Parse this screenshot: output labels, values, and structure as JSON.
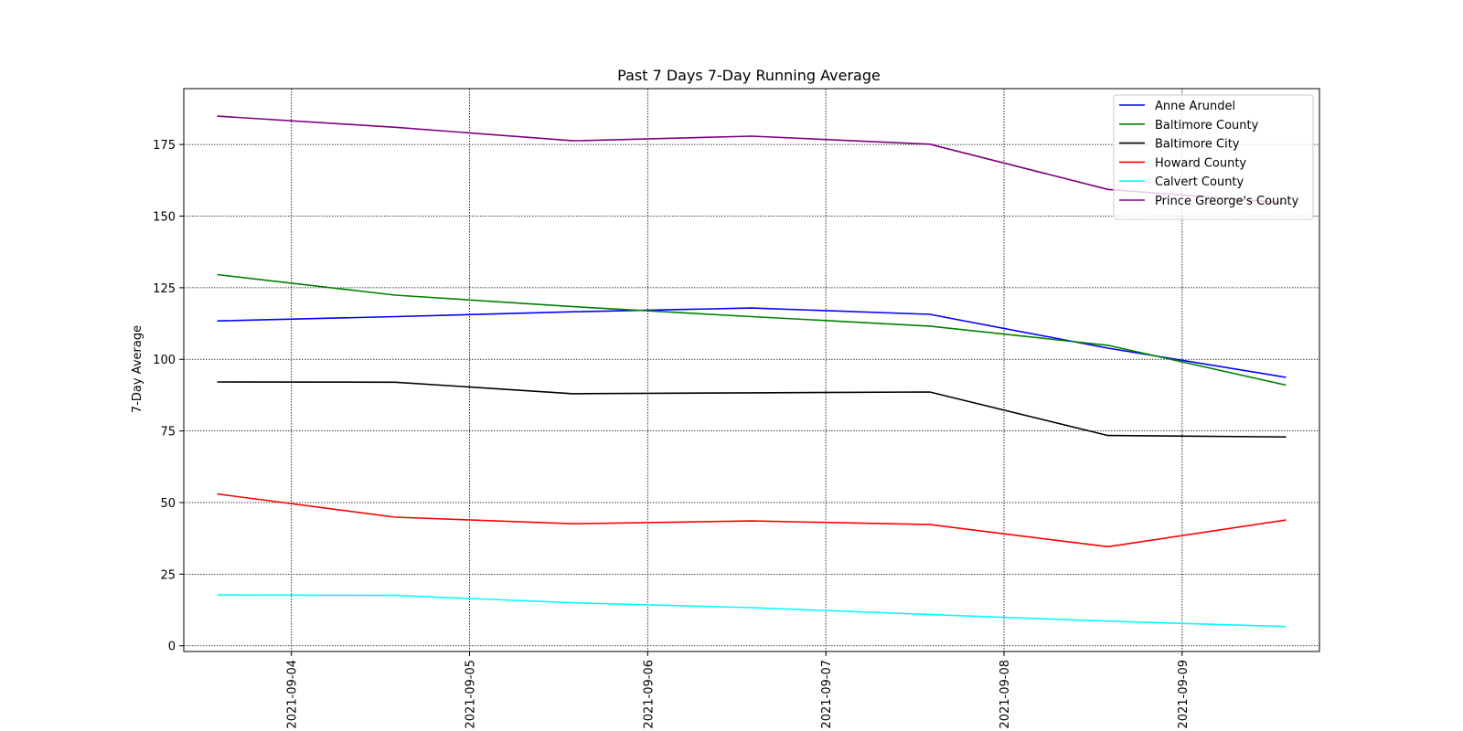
{
  "chart_data": {
    "type": "line",
    "title": "Past 7 Days 7-Day Running Average",
    "xlabel": "",
    "ylabel": "7-Day Average",
    "x": [
      "2021-09-03 14:00",
      "2021-09-04 14:00",
      "2021-09-05 14:00",
      "2021-09-06 14:00",
      "2021-09-07 14:00",
      "2021-09-08 14:00",
      "2021-09-09 14:00"
    ],
    "xlim": [
      "2021-09-03 09:30",
      "2021-09-09 18:30"
    ],
    "xticks": [
      "2021-09-04",
      "2021-09-05",
      "2021-09-06",
      "2021-09-07",
      "2021-09-08",
      "2021-09-09"
    ],
    "ylim": [
      -2,
      194.5
    ],
    "yticks": [
      0,
      25,
      50,
      75,
      100,
      125,
      150,
      175
    ],
    "grid": true,
    "legend_position": "top-right",
    "series": [
      {
        "name": "Anne Arundel",
        "color": "#0000ff",
        "values": [
          113.4,
          114.9,
          116.6,
          117.9,
          115.7,
          103.9,
          93.7
        ]
      },
      {
        "name": "Baltimore County",
        "color": "#008000",
        "values": [
          129.6,
          122.4,
          118.4,
          114.9,
          111.6,
          104.9,
          91.0
        ]
      },
      {
        "name": "Baltimore City",
        "color": "#000000",
        "values": [
          92.1,
          92.0,
          88.0,
          88.3,
          88.6,
          73.4,
          72.9
        ]
      },
      {
        "name": "Howard County",
        "color": "#ff0000",
        "values": [
          53.0,
          44.9,
          42.6,
          43.6,
          42.3,
          34.6,
          43.9
        ]
      },
      {
        "name": "Calvert County",
        "color": "#00ffff",
        "values": [
          17.7,
          17.6,
          15.0,
          13.3,
          10.9,
          8.6,
          6.7
        ]
      },
      {
        "name": "Prince Greorge's County",
        "color": "#800080",
        "values": [
          184.9,
          181.0,
          176.3,
          177.9,
          175.1,
          159.3,
          154.6
        ]
      }
    ]
  }
}
